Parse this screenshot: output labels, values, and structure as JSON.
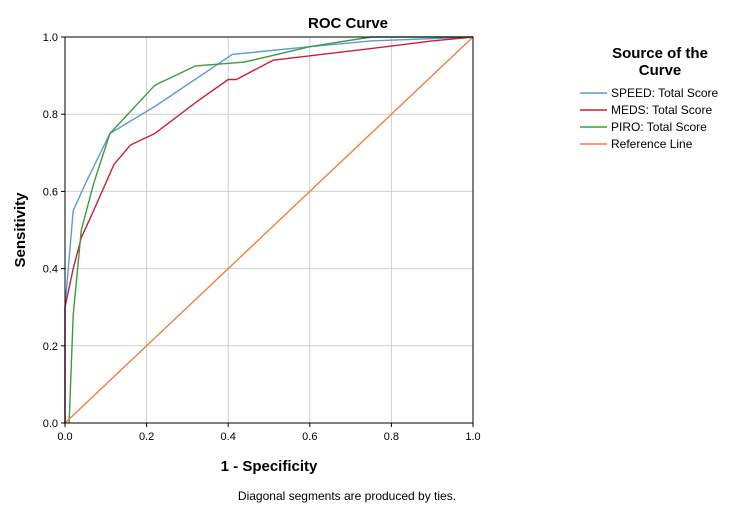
{
  "chart_data": {
    "type": "line",
    "title": "ROC Curve",
    "xlabel": "1 - Specificity",
    "ylabel": "Sensitivity",
    "xlim": [
      0,
      1
    ],
    "ylim": [
      0,
      1
    ],
    "x_ticks": [
      "0.0",
      "0.2",
      "0.4",
      "0.6",
      "0.8",
      "1.0"
    ],
    "y_ticks": [
      "0.0",
      "0.2",
      "0.4",
      "0.6",
      "0.8",
      "1.0"
    ],
    "grid": true,
    "legend": {
      "title_lines": [
        "Source of the",
        "Curve"
      ],
      "placement": "right"
    },
    "footnote": "Diagonal segments are produced by ties.",
    "series": [
      {
        "name": "SPEED: Total Score",
        "color": "#5b9bd5",
        "points": [
          [
            0,
            0
          ],
          [
            0,
            0.3
          ],
          [
            0.02,
            0.55
          ],
          [
            0.05,
            0.62
          ],
          [
            0.11,
            0.75
          ],
          [
            0.22,
            0.82
          ],
          [
            0.41,
            0.955
          ],
          [
            0.6,
            0.975
          ],
          [
            0.75,
            0.99
          ],
          [
            1,
            1
          ]
        ]
      },
      {
        "name": "MEDS: Total Score",
        "color": "#c8203c",
        "points": [
          [
            0,
            0
          ],
          [
            0,
            0.3
          ],
          [
            0.02,
            0.4
          ],
          [
            0.04,
            0.48
          ],
          [
            0.07,
            0.55
          ],
          [
            0.12,
            0.67
          ],
          [
            0.16,
            0.72
          ],
          [
            0.22,
            0.75
          ],
          [
            0.32,
            0.83
          ],
          [
            0.4,
            0.89
          ],
          [
            0.42,
            0.89
          ],
          [
            0.51,
            0.94
          ],
          [
            0.75,
            0.97
          ],
          [
            0.9,
            0.99
          ],
          [
            1,
            1
          ]
        ]
      },
      {
        "name": "PIRO: Total Score",
        "color": "#3e9a3e",
        "points": [
          [
            0.01,
            0
          ],
          [
            0.02,
            0.28
          ],
          [
            0.04,
            0.5
          ],
          [
            0.07,
            0.62
          ],
          [
            0.11,
            0.75
          ],
          [
            0.22,
            0.875
          ],
          [
            0.32,
            0.925
          ],
          [
            0.44,
            0.935
          ],
          [
            0.6,
            0.975
          ],
          [
            0.75,
            1
          ],
          [
            1,
            1
          ]
        ]
      },
      {
        "name": "Reference Line",
        "color": "#f07f3c",
        "points": [
          [
            0,
            0
          ],
          [
            1,
            1
          ]
        ]
      }
    ]
  }
}
